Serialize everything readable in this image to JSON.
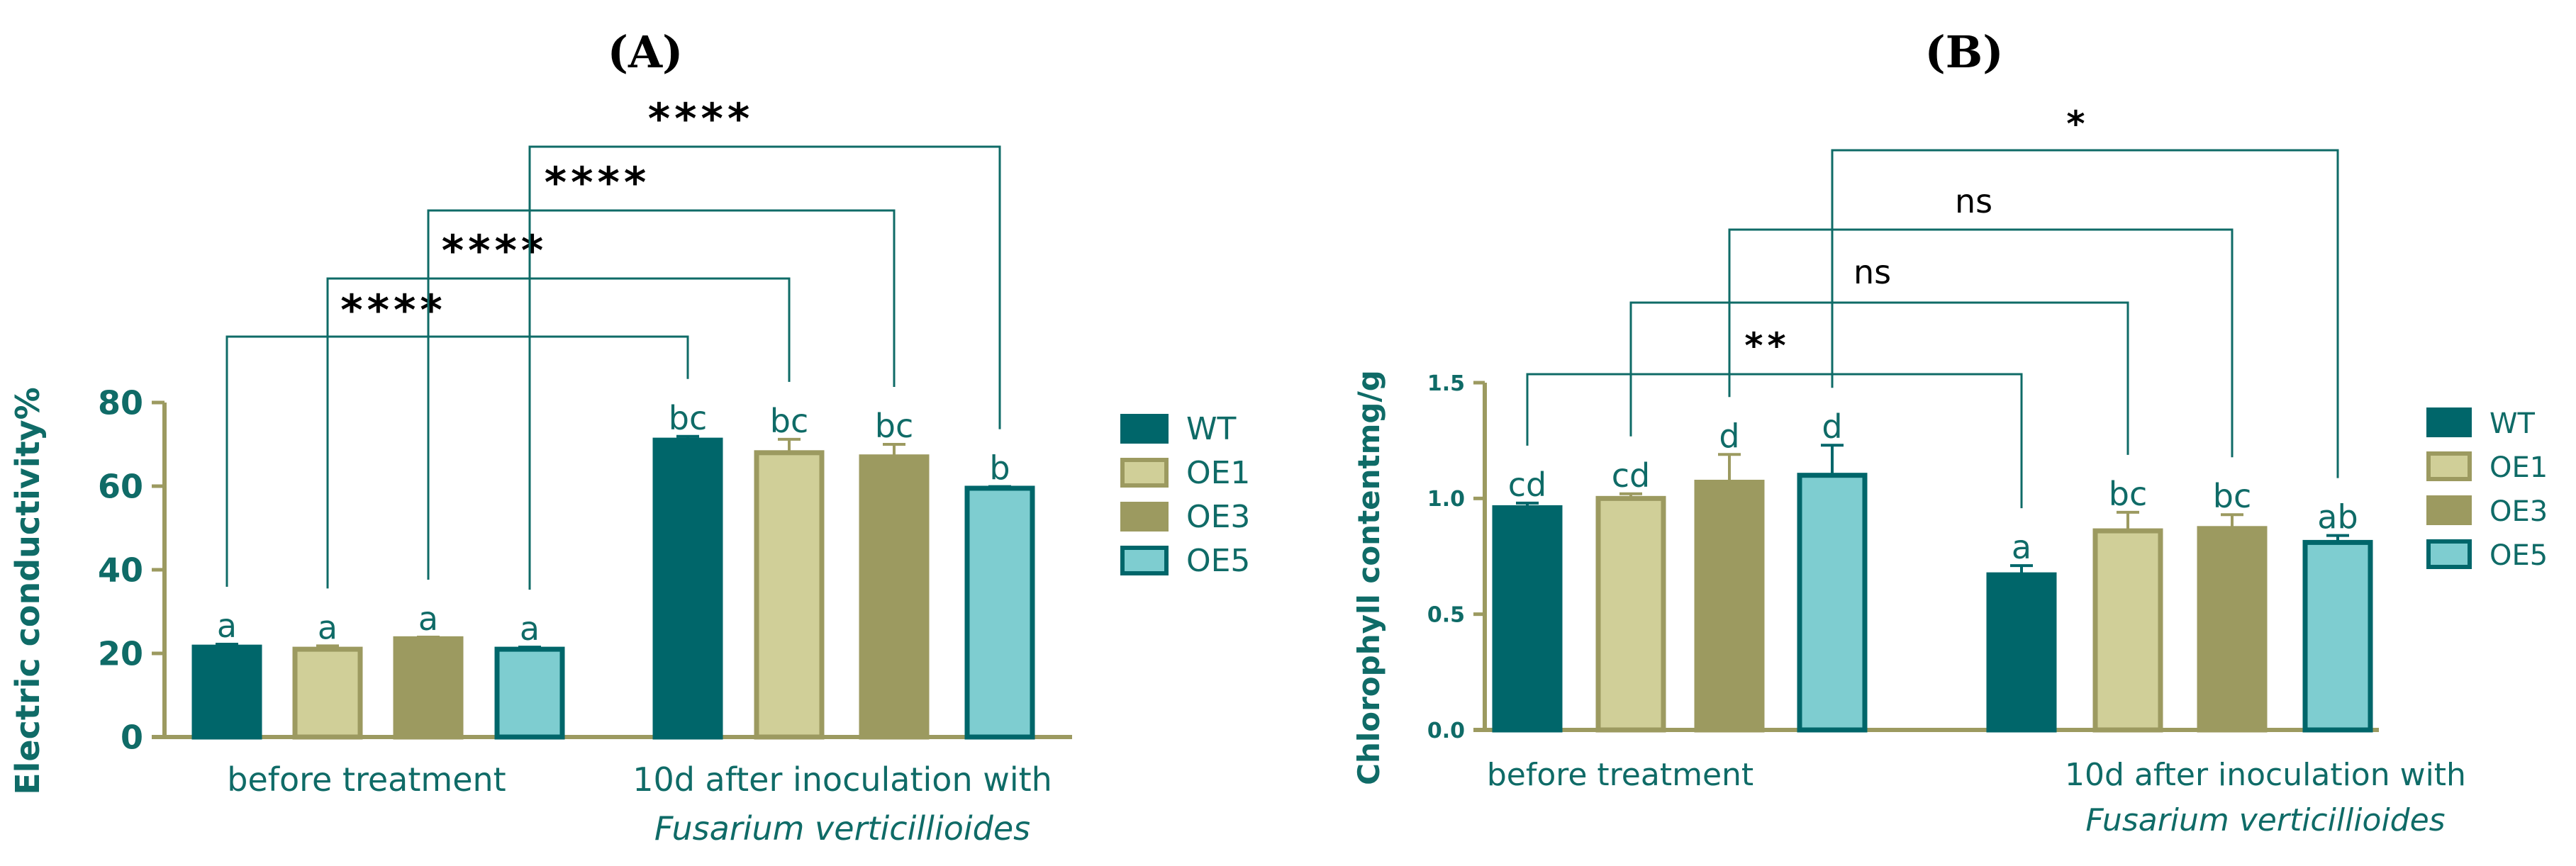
{
  "chart_data": [
    {
      "type": "bar",
      "panel_label": "(A)",
      "categories": [
        "before treatment",
        "10d after inoculation with"
      ],
      "category_sublabels": [
        "",
        "Fusarium verticillioides"
      ],
      "ylabel": "Electric conductivity%",
      "ylim": [
        0,
        80
      ],
      "yticks": [
        "0",
        "20",
        "40",
        "60",
        "80"
      ],
      "series": [
        {
          "name": "WT",
          "color": "#00666a",
          "edge": "#00666a",
          "values": [
            21.5,
            71.0
          ],
          "errors": [
            0.7,
            0.9
          ],
          "letters": [
            "a",
            "bc"
          ]
        },
        {
          "name": "OE1",
          "color": "#d0cf98",
          "edge": "#9c9a60",
          "values": [
            21.0,
            68.0
          ],
          "errors": [
            0.8,
            3.2
          ],
          "letters": [
            "a",
            "bc"
          ]
        },
        {
          "name": "OE3",
          "color": "#9c9a60",
          "edge": "#9c9a60",
          "values": [
            23.5,
            67.0
          ],
          "errors": [
            0.4,
            3.0
          ],
          "letters": [
            "a",
            "bc"
          ]
        },
        {
          "name": "OE5",
          "color": "#7ecdd0",
          "edge": "#00666a",
          "values": [
            21.0,
            59.5
          ],
          "errors": [
            0.5,
            0.4
          ],
          "letters": [
            "a",
            "b"
          ]
        }
      ],
      "comparisons": [
        {
          "series": "WT",
          "label": "****"
        },
        {
          "series": "OE1",
          "label": "****"
        },
        {
          "series": "OE3",
          "label": "****"
        },
        {
          "series": "OE5",
          "label": "****"
        }
      ],
      "legend": "right"
    },
    {
      "type": "bar",
      "panel_label": "(B)",
      "categories": [
        "before treatment",
        "10d after inoculation  with"
      ],
      "category_sublabels": [
        "",
        "Fusarium verticillioides"
      ],
      "ylabel": "Chlorophyll contentmg/g",
      "ylim": [
        0,
        1.5
      ],
      "yticks": [
        "0.0",
        "0.5",
        "1.0",
        "1.5"
      ],
      "series": [
        {
          "name": "WT",
          "color": "#00666a",
          "edge": "#00666a",
          "values": [
            0.96,
            0.67
          ],
          "errors": [
            0.02,
            0.04
          ],
          "letters": [
            "cd",
            "a"
          ]
        },
        {
          "name": "OE1",
          "color": "#d0cf98",
          "edge": "#9c9a60",
          "values": [
            1.0,
            0.86
          ],
          "errors": [
            0.02,
            0.08
          ],
          "letters": [
            "cd",
            "bc"
          ]
        },
        {
          "name": "OE3",
          "color": "#9c9a60",
          "edge": "#9c9a60",
          "values": [
            1.07,
            0.87
          ],
          "errors": [
            0.12,
            0.06
          ],
          "letters": [
            "d",
            "bc"
          ]
        },
        {
          "name": "OE5",
          "color": "#7ecdd0",
          "edge": "#00666a",
          "values": [
            1.1,
            0.81
          ],
          "errors": [
            0.13,
            0.03
          ],
          "letters": [
            "d",
            "ab"
          ]
        }
      ],
      "comparisons": [
        {
          "series": "WT",
          "label": "**"
        },
        {
          "series": "OE1",
          "label": "ns"
        },
        {
          "series": "OE3",
          "label": "ns"
        },
        {
          "series": "OE5",
          "label": "*"
        }
      ],
      "legend": "right"
    }
  ]
}
